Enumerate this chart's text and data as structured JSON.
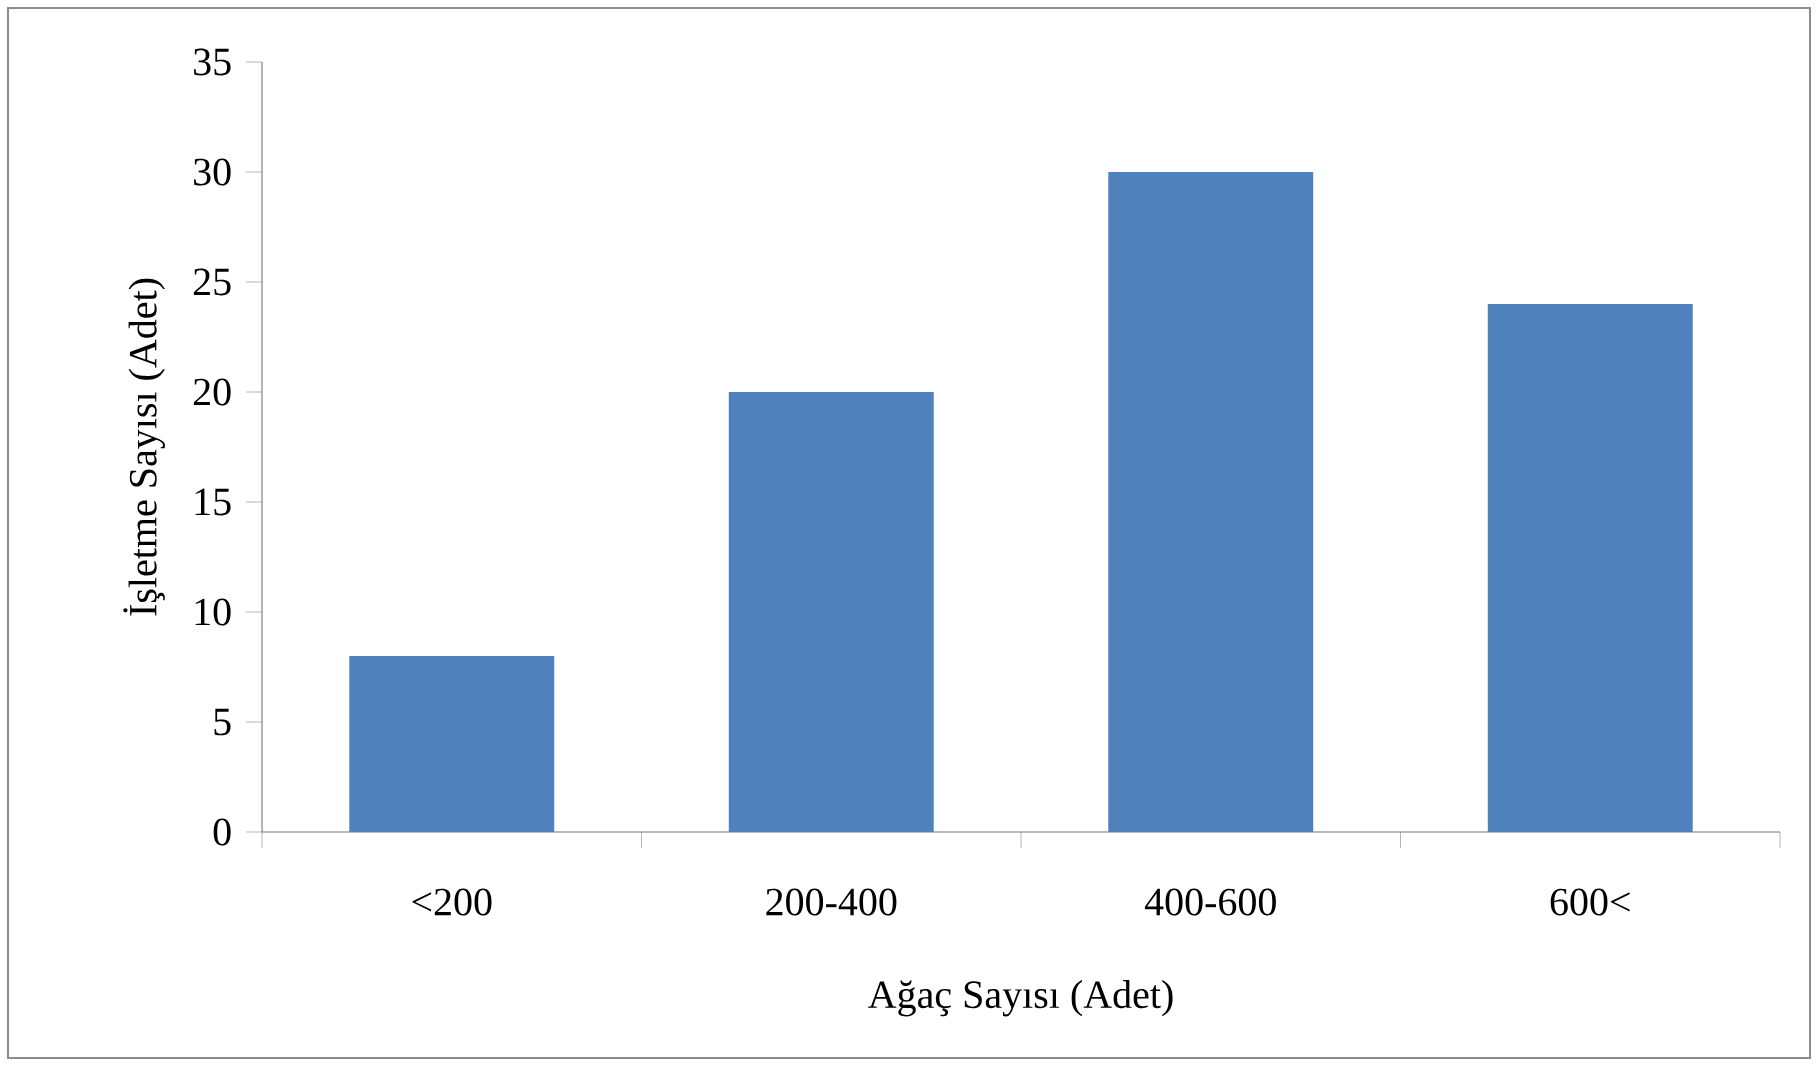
{
  "chart_data": {
    "type": "bar",
    "xlabel": "Ağaç Sayısı (Adet)",
    "ylabel": "İşletme Sayısı (Adet)",
    "categories": [
      "<200",
      "200-400",
      "400-600",
      "600<"
    ],
    "values": [
      8,
      20,
      30,
      24
    ],
    "color": "#4f81bd",
    "ylim": [
      0,
      35
    ],
    "yticks": [
      0,
      5,
      10,
      15,
      20,
      25,
      30,
      35
    ]
  }
}
